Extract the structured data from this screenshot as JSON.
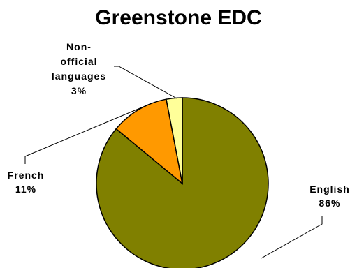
{
  "chart_data": {
    "type": "pie",
    "title": "Greenstone EDC",
    "slices": [
      {
        "label": "English",
        "percent_label": "86%",
        "value": 86,
        "color": "#808000"
      },
      {
        "label": "French",
        "percent_label": "11%",
        "value": 11,
        "color": "#FF9900"
      },
      {
        "label": "Non-official languages",
        "percent_label": "3%",
        "value": 3,
        "color": "#FFFF99"
      }
    ],
    "data_labels": [
      {
        "lines": [
          "English",
          "86%"
        ]
      },
      {
        "lines": [
          "French",
          "11%"
        ]
      },
      {
        "lines": [
          "Non-",
          "official",
          "languages",
          "3%"
        ]
      }
    ],
    "legend": false
  }
}
